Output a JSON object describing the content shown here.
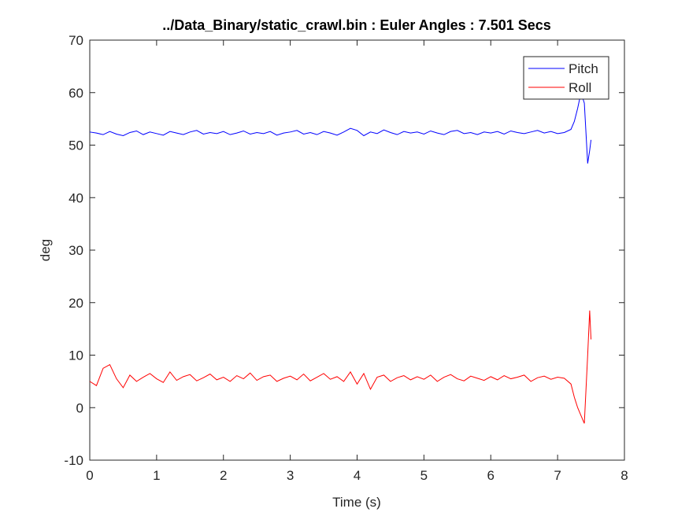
{
  "chart_data": {
    "type": "line",
    "title": "../Data_Binary/static_crawl.bin : Euler Angles : 7.501 Secs",
    "x_label": "Time (s)",
    "y_label": "deg",
    "x": [
      0,
      0.1,
      0.2,
      0.3,
      0.4,
      0.5,
      0.6,
      0.7,
      0.8,
      0.9,
      1,
      1.1,
      1.2,
      1.3,
      1.4,
      1.5,
      1.6,
      1.7,
      1.8,
      1.9,
      2,
      2.1,
      2.2,
      2.3,
      2.4,
      2.5,
      2.6,
      2.7,
      2.8,
      2.9,
      3,
      3.1,
      3.2,
      3.3,
      3.4,
      3.5,
      3.6,
      3.7,
      3.8,
      3.9,
      4,
      4.1,
      4.2,
      4.3,
      4.4,
      4.5,
      4.6,
      4.7,
      4.8,
      4.9,
      5,
      5.1,
      5.2,
      5.3,
      5.4,
      5.5,
      5.6,
      5.7,
      5.8,
      5.9,
      6,
      6.1,
      6.2,
      6.3,
      6.4,
      6.5,
      6.6,
      6.7,
      6.8,
      6.9,
      7,
      7.1,
      7.2,
      7.25,
      7.3,
      7.35,
      7.4,
      7.45,
      7.48,
      7.5
    ],
    "series": [
      {
        "name": "Pitch",
        "color": "#0000ff",
        "values": [
          52.5,
          52.3,
          52.0,
          52.6,
          52.1,
          51.8,
          52.4,
          52.7,
          52.0,
          52.5,
          52.2,
          51.9,
          52.6,
          52.3,
          52.0,
          52.5,
          52.8,
          52.1,
          52.4,
          52.2,
          52.6,
          52.0,
          52.3,
          52.7,
          52.1,
          52.4,
          52.2,
          52.6,
          51.9,
          52.3,
          52.5,
          52.8,
          52.1,
          52.4,
          52.0,
          52.6,
          52.3,
          51.9,
          52.5,
          53.2,
          52.8,
          51.8,
          52.5,
          52.2,
          52.9,
          52.4,
          52.0,
          52.6,
          52.3,
          52.5,
          52.1,
          52.7,
          52.3,
          52.0,
          52.6,
          52.8,
          52.2,
          52.4,
          52.0,
          52.5,
          52.3,
          52.6,
          52.1,
          52.7,
          52.4,
          52.2,
          52.5,
          52.8,
          52.3,
          52.6,
          52.2,
          52.4,
          53.0,
          54.5,
          57,
          60,
          58,
          46.5,
          49,
          51
        ]
      },
      {
        "name": "Roll",
        "color": "#ff0000",
        "values": [
          5.0,
          4.2,
          7.5,
          8.2,
          5.5,
          3.8,
          6.2,
          5.0,
          5.8,
          6.5,
          5.5,
          4.8,
          6.8,
          5.2,
          5.9,
          6.3,
          5.1,
          5.7,
          6.4,
          5.3,
          5.8,
          5.0,
          6.1,
          5.5,
          6.6,
          5.2,
          5.9,
          6.2,
          5.0,
          5.6,
          6.0,
          5.3,
          6.4,
          5.1,
          5.8,
          6.5,
          5.4,
          5.9,
          5.0,
          6.8,
          4.5,
          6.5,
          3.5,
          5.8,
          6.2,
          5.0,
          5.7,
          6.1,
          5.3,
          5.9,
          5.4,
          6.2,
          5.0,
          5.8,
          6.3,
          5.5,
          5.1,
          6.0,
          5.6,
          5.2,
          5.9,
          5.3,
          6.1,
          5.5,
          5.8,
          6.2,
          5.0,
          5.7,
          6.0,
          5.4,
          5.8,
          5.6,
          4.5,
          2.0,
          0,
          -1.5,
          -3,
          10,
          18.5,
          13
        ]
      }
    ],
    "xlim": [
      0,
      8
    ],
    "xticks": [
      0,
      1,
      2,
      3,
      4,
      5,
      6,
      7,
      8
    ],
    "ylim": [
      -10,
      70
    ],
    "yticks": [
      -10,
      0,
      10,
      20,
      30,
      40,
      50,
      60,
      70
    ],
    "legend": "northeast"
  }
}
